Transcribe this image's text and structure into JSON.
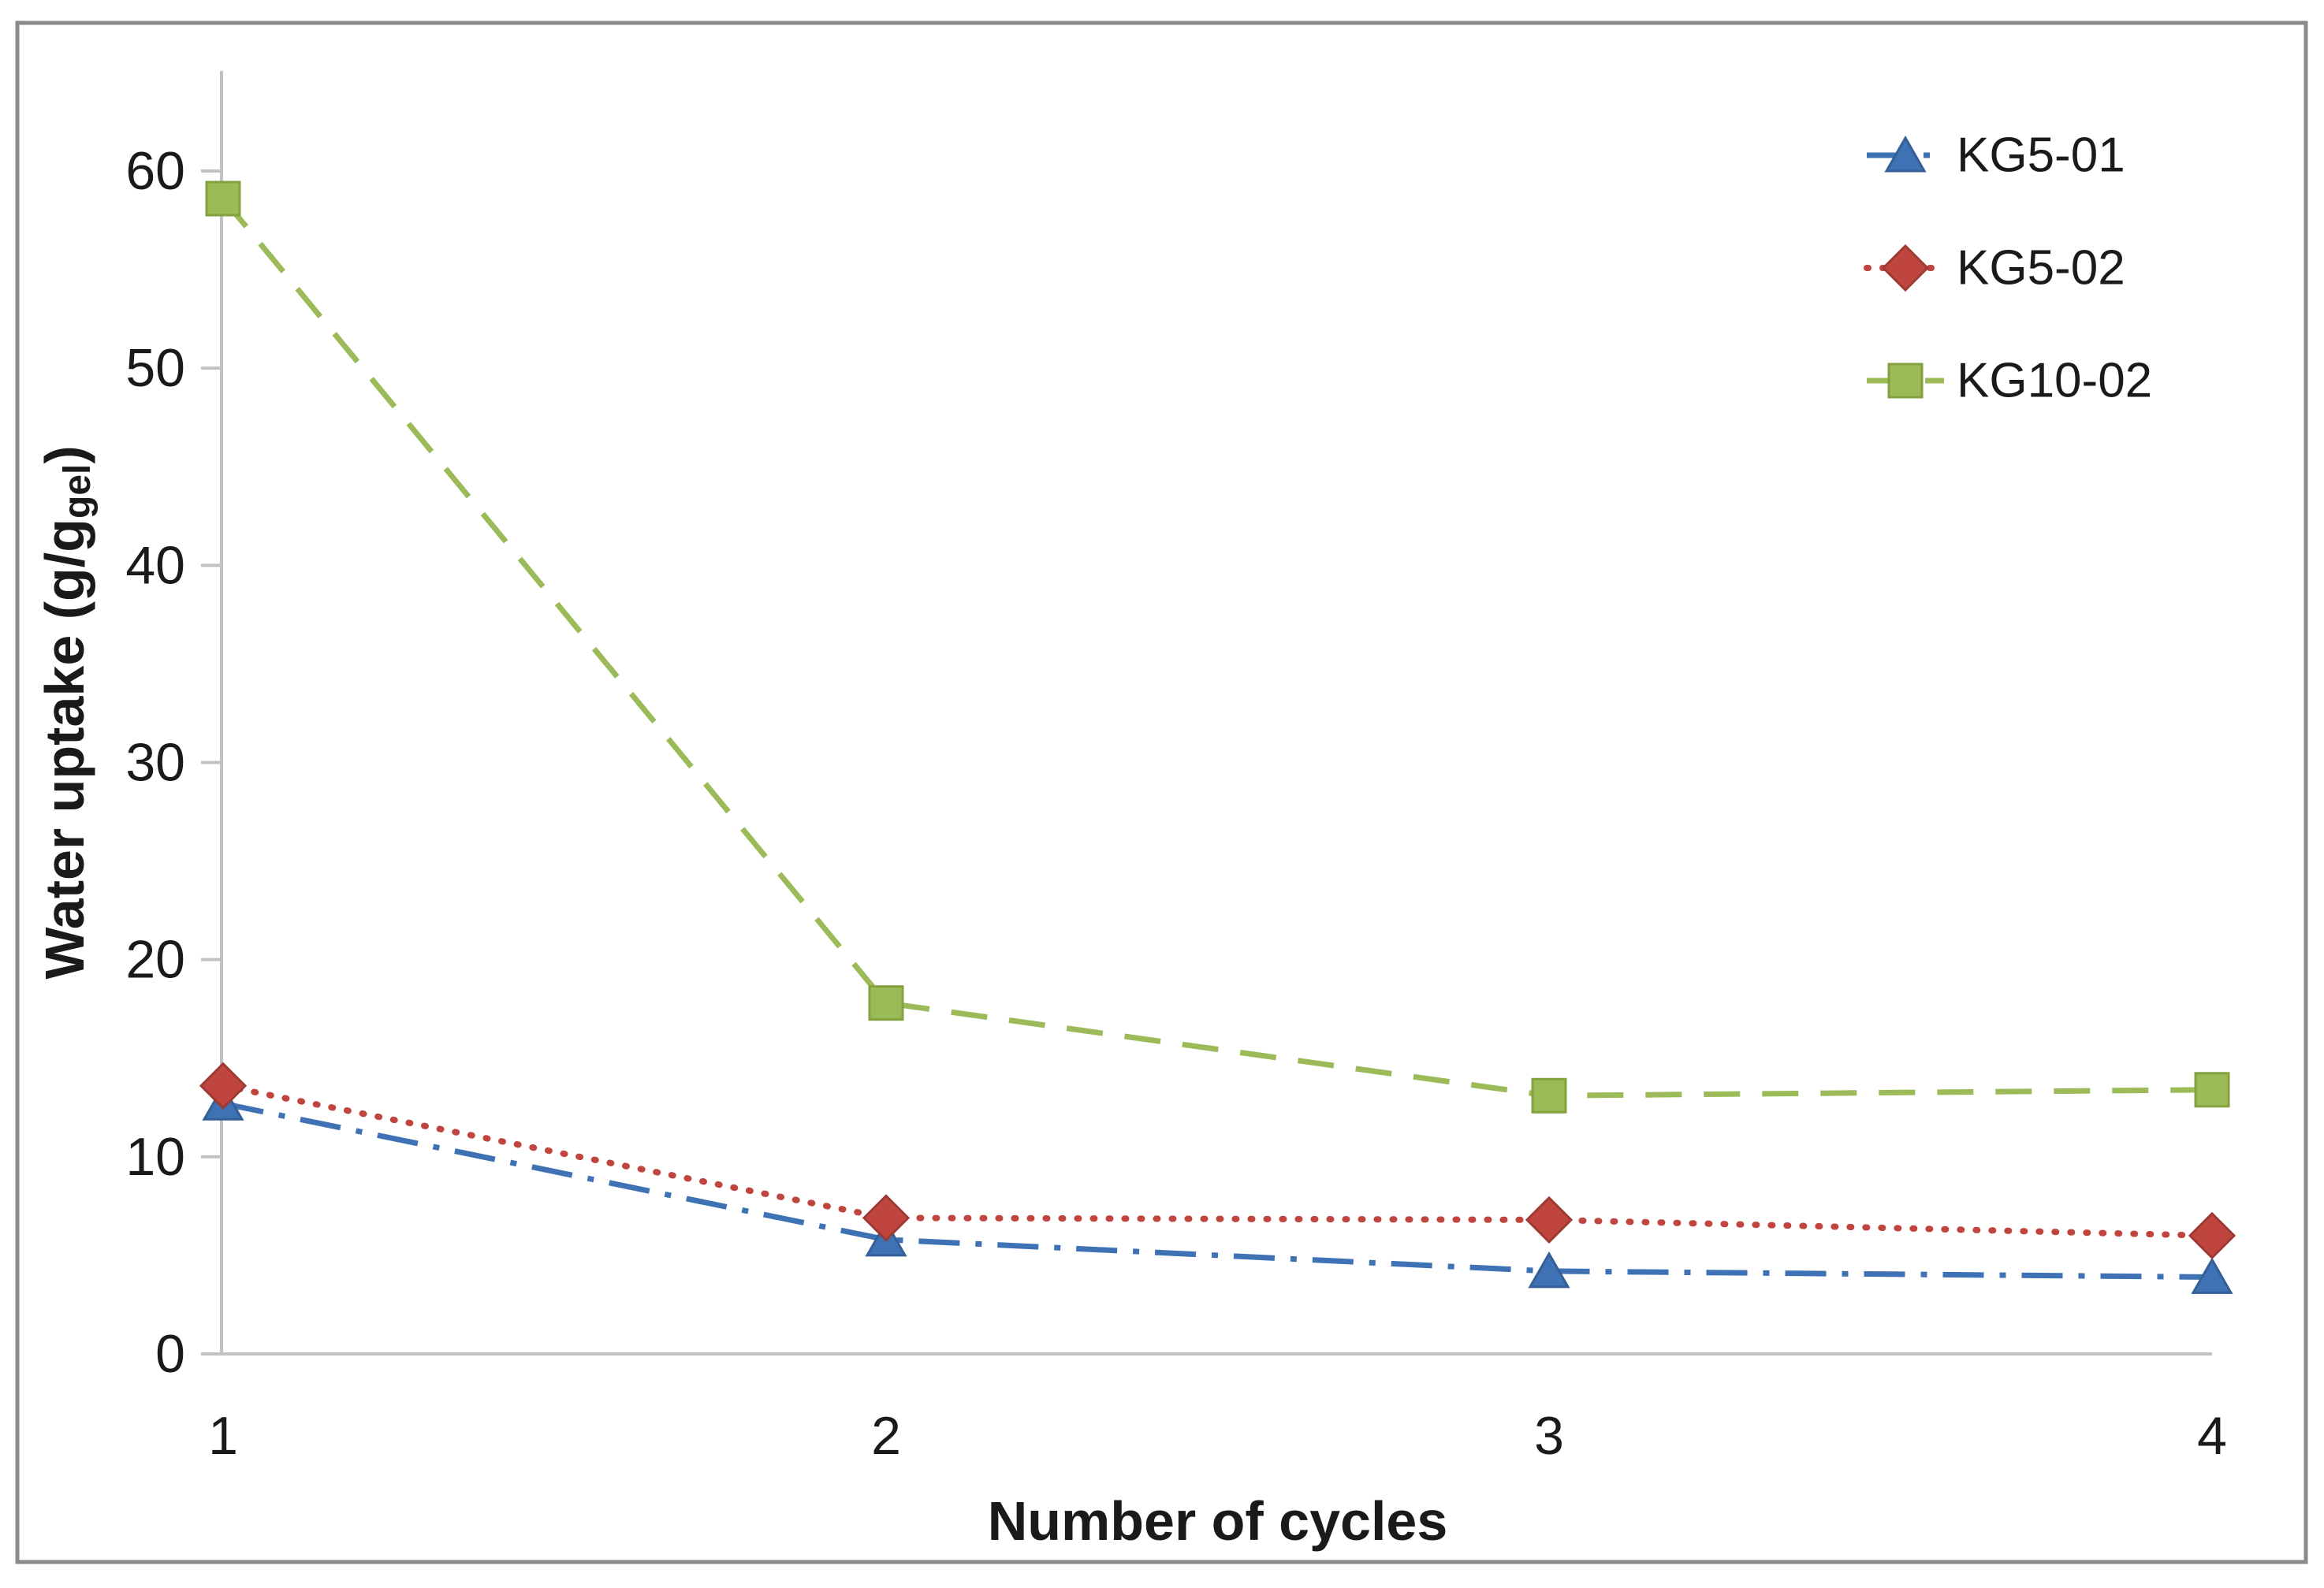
{
  "figure": {
    "background": "#ffffff",
    "border_color": "#8a8a8a",
    "axis_line_color": "#c2c2c2",
    "text_color": "#1a1a1a"
  },
  "chart_data": {
    "type": "line",
    "title": "",
    "xlabel": "Number of cycles",
    "ylabel_prefix": "Water uptake (g/g",
    "ylabel_subscript": "gel",
    "ylabel_suffix": ")",
    "categories": [
      "1",
      "2",
      "3",
      "4"
    ],
    "x": [
      1,
      2,
      3,
      4
    ],
    "y_ticks": [
      0,
      10,
      20,
      30,
      40,
      50,
      60
    ],
    "ylim": [
      0,
      65
    ],
    "grid": false,
    "legend_position": "upper-right",
    "series": [
      {
        "name": "KG5-01",
        "values": [
          12.7,
          5.8,
          4.2,
          3.9
        ],
        "color": "#3F72B4",
        "marker_border": "#345E96",
        "marker": "triangle",
        "line_style": "dash-dot"
      },
      {
        "name": "KG5-02",
        "values": [
          13.6,
          6.9,
          6.8,
          6.0
        ],
        "color": "#C1453F",
        "marker_border": "#9E3934",
        "marker": "diamond",
        "line_style": "dotted"
      },
      {
        "name": "KG10-02",
        "values": [
          58.6,
          17.8,
          13.1,
          13.4
        ],
        "color": "#9BBB59",
        "marker_border": "#83A23F",
        "marker": "square",
        "line_style": "dashed"
      }
    ]
  }
}
